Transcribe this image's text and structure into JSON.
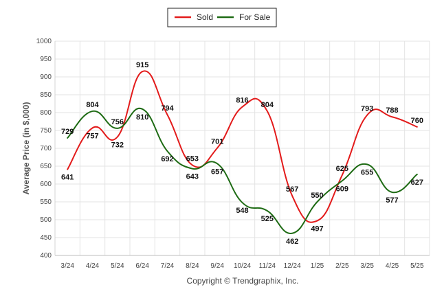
{
  "chart_data": {
    "type": "line",
    "title": "",
    "xlabel": "",
    "ylabel": "Average Price (in $,000)",
    "ylim": [
      400,
      1000
    ],
    "y_ticks": [
      400,
      450,
      500,
      550,
      600,
      650,
      700,
      750,
      800,
      850,
      900,
      950,
      1000
    ],
    "categories": [
      "3/24",
      "4/24",
      "5/24",
      "6/24",
      "7/24",
      "8/24",
      "9/24",
      "10/24",
      "11/24",
      "12/24",
      "1/25",
      "2/25",
      "3/25",
      "4/25",
      "5/25"
    ],
    "series": [
      {
        "name": "Sold",
        "color": "#e31b1b",
        "values": [
          641,
          757,
          732,
          915,
          794,
          653,
          701,
          816,
          804,
          567,
          497,
          625,
          793,
          788,
          760
        ]
      },
      {
        "name": "For Sale",
        "color": "#1e6b14",
        "values": [
          729,
          804,
          756,
          810,
          692,
          643,
          657,
          548,
          525,
          462,
          550,
          609,
          655,
          577,
          627
        ]
      }
    ],
    "grid": true,
    "legend": "top-center"
  },
  "footer": {
    "copyright": "Copyright © Trendgraphix, Inc."
  }
}
